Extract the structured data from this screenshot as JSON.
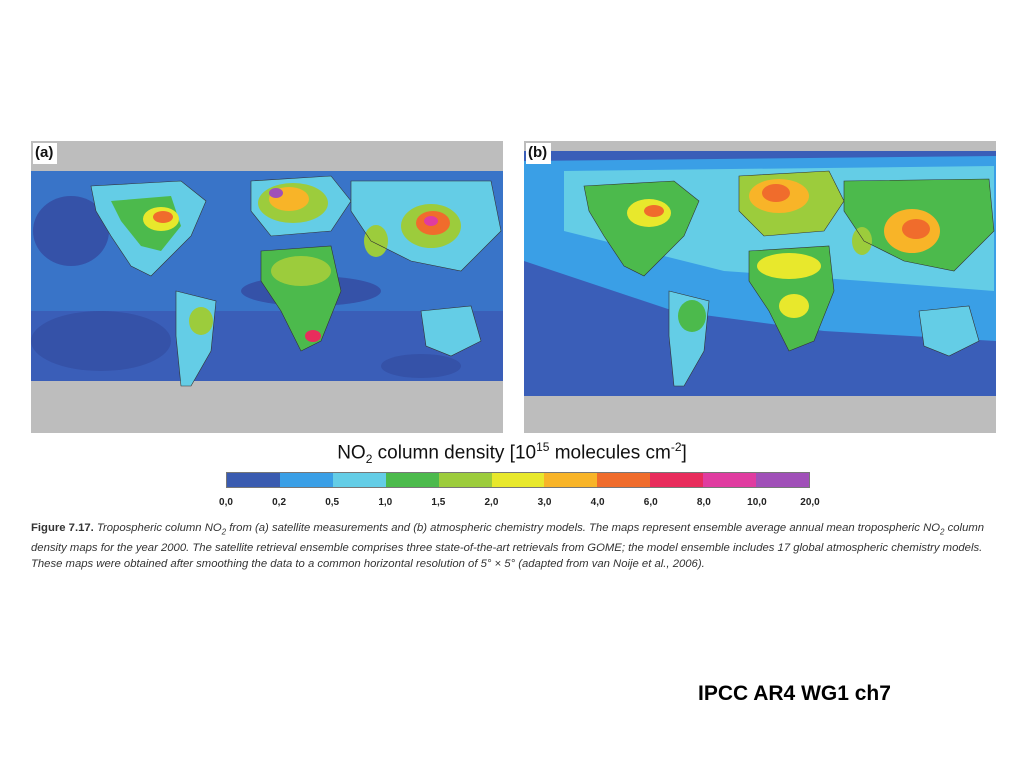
{
  "panels": [
    {
      "label": "(a)"
    },
    {
      "label": "(b)"
    }
  ],
  "colorbar": {
    "title_prefix": "NO",
    "title_sub": "2",
    "title_mid": " column density [10",
    "title_sup1": "15",
    "title_mid2": " molecules cm",
    "title_sup2": "-2",
    "title_suffix": "]",
    "colors": [
      "#3a5bb0",
      "#3a9fe6",
      "#64cde6",
      "#4cba4c",
      "#9ccc3c",
      "#e8e82c",
      "#f8b428",
      "#f06c2c",
      "#e82c5c",
      "#e03ca0",
      "#a050b8"
    ],
    "ticks": [
      "0,0",
      "0,2",
      "0,5",
      "1,0",
      "1,5",
      "2,0",
      "3,0",
      "4,0",
      "6,0",
      "8,0",
      "10,0",
      "20,0"
    ]
  },
  "caption": {
    "fig": "Figure 7.17.",
    "l1": " Tropospheric column NO",
    "l2": " from (a) satellite measurements and (b) atmospheric chemistry models. The maps represent ensemble average annual mean tropospheric NO",
    "l3": " column density maps for the year 2000. The satellite retrieval ensemble comprises three state-of-the-art retrievals from GOME; the model ensemble includes 17 global atmospheric chemistry models. These maps were obtained after smoothing the data to a common horizontal resolution of 5° × 5° (adapted from van Noije et al., 2006).",
    "sub": "2"
  },
  "footer": "IPCC AR4 WG1 ch7"
}
